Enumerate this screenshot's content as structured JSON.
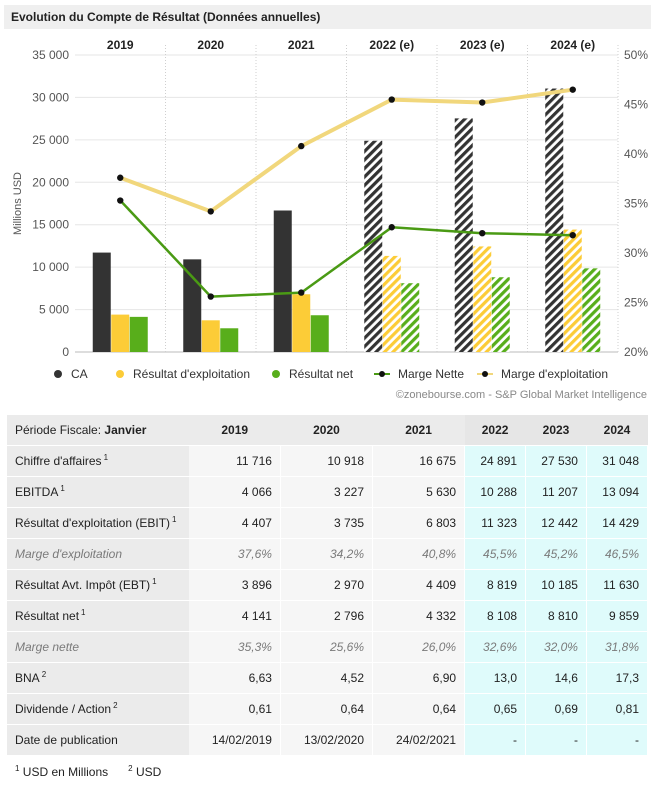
{
  "title": "Evolution du Compte de Résultat (Données annuelles)",
  "credit": "©zonebourse.com - S&P Global Market Intelligence",
  "chart_data": {
    "type": "bar",
    "categories": [
      "2019",
      "2020",
      "2021",
      "2022 (e)",
      "2023 (e)",
      "2024 (e)"
    ],
    "estimated": [
      false,
      false,
      false,
      true,
      true,
      true
    ],
    "ylabel": "Millions USD",
    "ylim": [
      0,
      35000
    ],
    "yticks": [
      "0",
      "5 000",
      "10 000",
      "15 000",
      "20 000",
      "25 000",
      "30 000",
      "35 000"
    ],
    "y2lim": [
      20,
      50
    ],
    "y2ticks": [
      "20%",
      "25%",
      "30%",
      "35%",
      "40%",
      "45%",
      "50%"
    ],
    "series": [
      {
        "name": "CA",
        "kind": "bar",
        "color": "#333333",
        "values": [
          11716,
          10918,
          16675,
          24891,
          27530,
          31048
        ]
      },
      {
        "name": "Résultat d'exploitation",
        "kind": "bar",
        "color": "#fccc37",
        "values": [
          4407,
          3735,
          6803,
          11323,
          12442,
          14429
        ]
      },
      {
        "name": "Résultat net",
        "kind": "bar",
        "color": "#58ae1b",
        "values": [
          4141,
          2796,
          4332,
          8108,
          8810,
          9859
        ]
      },
      {
        "name": "Marge Nette",
        "kind": "line",
        "axis": "right",
        "color": "#4a9a14",
        "values": [
          35.3,
          25.6,
          26.0,
          32.6,
          32.0,
          31.8
        ]
      },
      {
        "name": "Marge d'exploitation",
        "kind": "line",
        "axis": "right",
        "color": "#f1d77c",
        "values": [
          37.6,
          34.2,
          40.8,
          45.5,
          45.2,
          46.5
        ]
      }
    ],
    "grid": true,
    "legend": "bottom"
  },
  "legend": [
    {
      "label": "CA",
      "type": "dot",
      "color": "#333333"
    },
    {
      "label": "Résultat d'exploitation",
      "type": "dot",
      "color": "#fccc37"
    },
    {
      "label": "Résultat net",
      "type": "dot",
      "color": "#58ae1b"
    },
    {
      "label": "Marge Nette",
      "type": "line",
      "color": "#4a9a14"
    },
    {
      "label": "Marge d'exploitation",
      "type": "line",
      "color": "#f1d77c"
    }
  ],
  "table": {
    "period_label": "Période Fiscale:",
    "period_value": "Janvier",
    "years": [
      "2019",
      "2020",
      "2021",
      "2022",
      "2023",
      "2024"
    ],
    "rows": [
      {
        "label": "Chiffre d'affaires",
        "sup": "1",
        "italic": false,
        "values": [
          "11 716",
          "10 918",
          "16 675",
          "24 891",
          "27 530",
          "31 048"
        ]
      },
      {
        "label": "EBITDA",
        "sup": "1",
        "italic": false,
        "values": [
          "4 066",
          "3 227",
          "5 630",
          "10 288",
          "11 207",
          "13 094"
        ]
      },
      {
        "label": "Résultat d'exploitation (EBIT)",
        "sup": "1",
        "italic": false,
        "values": [
          "4 407",
          "3 735",
          "6 803",
          "11 323",
          "12 442",
          "14 429"
        ]
      },
      {
        "label": "Marge d'exploitation",
        "sup": "",
        "italic": true,
        "values": [
          "37,6%",
          "34,2%",
          "40,8%",
          "45,5%",
          "45,2%",
          "46,5%"
        ]
      },
      {
        "label": "Résultat Avt. Impôt (EBT)",
        "sup": "1",
        "italic": false,
        "values": [
          "3 896",
          "2 970",
          "4 409",
          "8 819",
          "10 185",
          "11 630"
        ]
      },
      {
        "label": "Résultat net",
        "sup": "1",
        "italic": false,
        "values": [
          "4 141",
          "2 796",
          "4 332",
          "8 108",
          "8 810",
          "9 859"
        ]
      },
      {
        "label": "Marge nette",
        "sup": "",
        "italic": true,
        "values": [
          "35,3%",
          "25,6%",
          "26,0%",
          "32,6%",
          "32,0%",
          "31,8%"
        ]
      },
      {
        "label": "BNA",
        "sup": "2",
        "italic": false,
        "values": [
          "6,63",
          "4,52",
          "6,90",
          "13,0",
          "14,6",
          "17,3"
        ]
      },
      {
        "label": "Dividende / Action",
        "sup": "2",
        "italic": false,
        "values": [
          "0,61",
          "0,64",
          "0,64",
          "0,65",
          "0,69",
          "0,81"
        ]
      },
      {
        "label": "Date de publication",
        "sup": "",
        "italic": false,
        "values": [
          "14/02/2019",
          "13/02/2020",
          "24/02/2021",
          "-",
          "-",
          "-"
        ]
      }
    ]
  },
  "footnotes": [
    {
      "sup": "1",
      "text": "USD en Millions"
    },
    {
      "sup": "2",
      "text": "USD"
    }
  ]
}
